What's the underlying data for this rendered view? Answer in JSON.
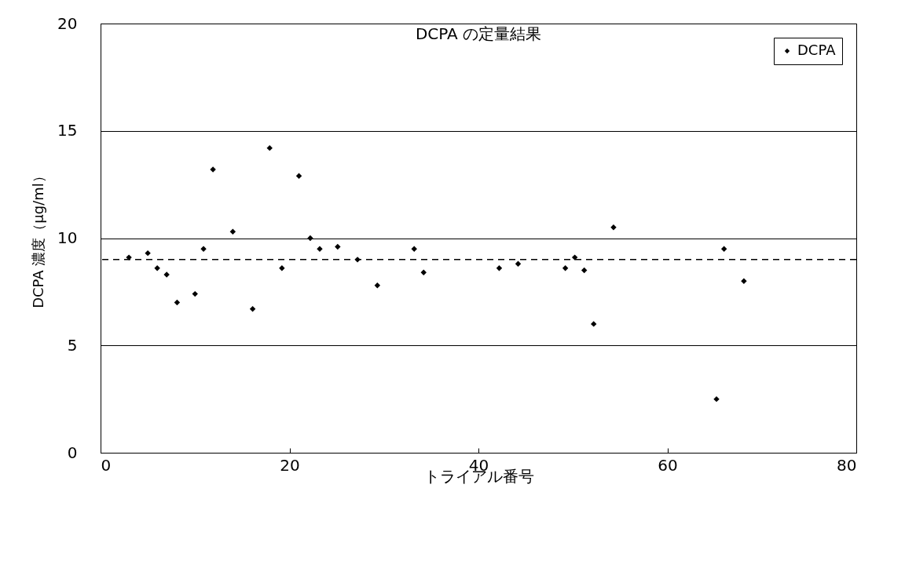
{
  "chart_data": {
    "type": "scatter",
    "title": "DCPA の定量結果",
    "xlabel": "トライアル番号",
    "ylabel": "DCPA 濃度（μg/ml）",
    "x": [
      3,
      5,
      6,
      7,
      8.1,
      10,
      10.9,
      11.9,
      14,
      16.1,
      17.9,
      19.2,
      21,
      22.2,
      23.2,
      25.1,
      27.2,
      29.3,
      33.2,
      34.2,
      42.2,
      44.2,
      49.2,
      50.2,
      51.2,
      52.2,
      54.3,
      65.2,
      66,
      68.1
    ],
    "series": [
      {
        "name": "DCPA",
        "color": "#000000",
        "values": [
          9.1,
          9.3,
          8.6,
          8.3,
          7.0,
          7.4,
          9.5,
          13.2,
          10.3,
          6.7,
          14.2,
          8.6,
          12.9,
          10.0,
          9.5,
          9.6,
          9.0,
          7.8,
          9.5,
          8.4,
          8.6,
          8.8,
          8.6,
          9.1,
          8.5,
          6.0,
          10.5,
          2.5,
          9.5,
          8.0
        ]
      }
    ],
    "xlim": [
      0,
      80
    ],
    "xticks": [
      0,
      20,
      40,
      60,
      80
    ],
    "ylim": [
      0,
      20
    ],
    "yticks": [
      0,
      5,
      10,
      15,
      20
    ],
    "ref_lines": [
      {
        "axis": "y",
        "value": 9,
        "color": "#000000",
        "line_style": "dashed"
      }
    ],
    "grid": "y",
    "legend": "top right",
    "marker": "diamond"
  }
}
